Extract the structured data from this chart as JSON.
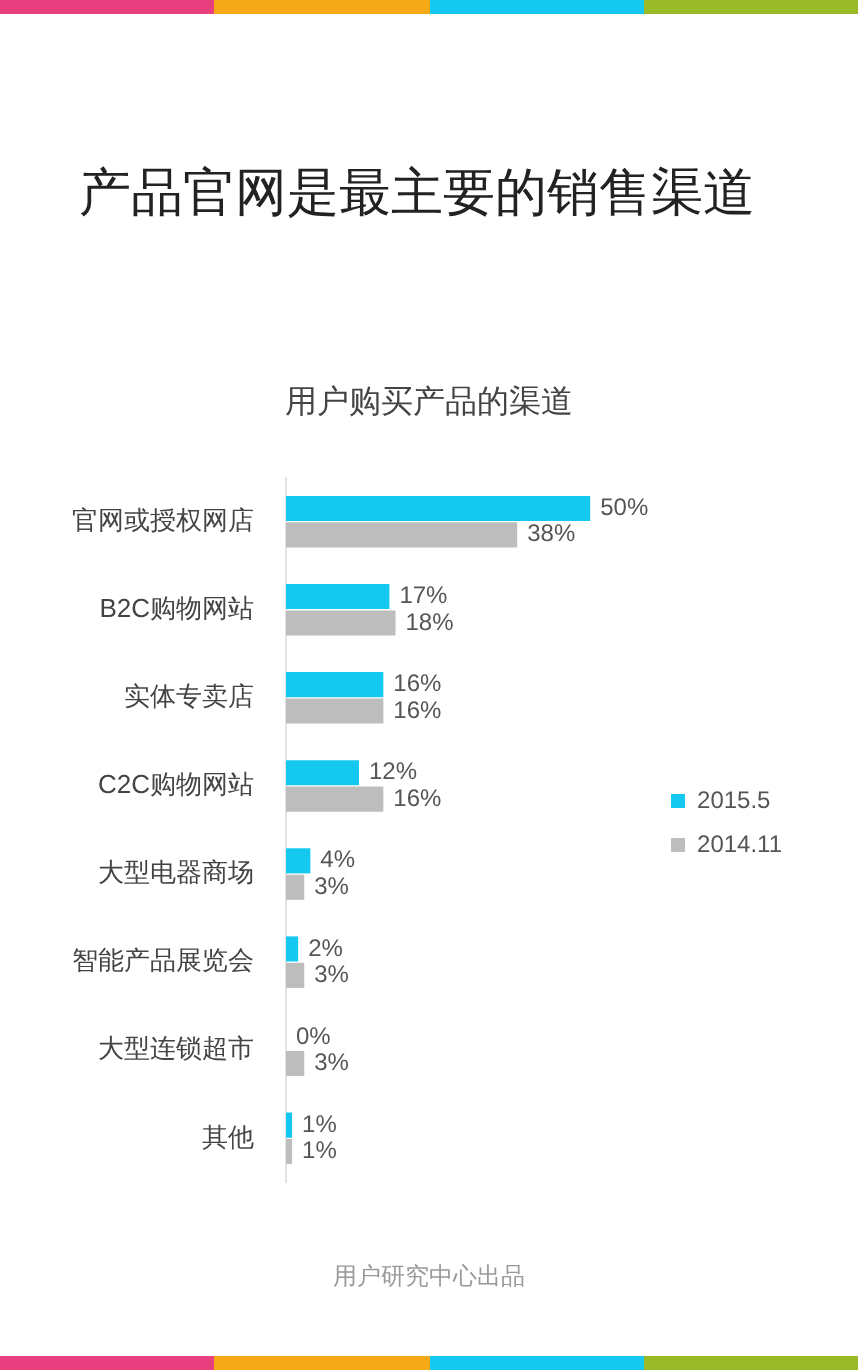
{
  "chart_data": {
    "type": "bar",
    "orientation": "horizontal",
    "title": "产品官网是最主要的销售渠道",
    "subtitle": "用户购买产品的渠道",
    "categories": [
      "官网或授权网店",
      "B2C购物网站",
      "实体专卖店",
      "C2C购物网站",
      "大型电器商场",
      "智能产品展览会",
      "大型连锁超市",
      "其他"
    ],
    "series": [
      {
        "name": "2015.5",
        "color": "#14c8f0",
        "values": [
          50,
          17,
          16,
          12,
          4,
          2,
          0,
          1
        ],
        "value_labels": [
          "50%",
          "17%",
          "16%",
          "12%",
          "4%",
          "2%",
          "0%",
          "1%"
        ]
      },
      {
        "name": "2014.11",
        "color": "#bdbdbd",
        "values": [
          38,
          18,
          16,
          16,
          3,
          3,
          3,
          1
        ],
        "value_labels": [
          "38%",
          "18%",
          "16%",
          "16%",
          "3%",
          "3%",
          "3%",
          "1%"
        ]
      }
    ],
    "tick_labels": "y",
    "grid": false,
    "legend": "right",
    "annotations": [
      "用户研究中心出品"
    ]
  }
}
